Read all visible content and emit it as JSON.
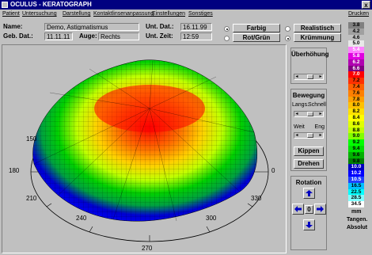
{
  "window": {
    "title": "OCULUS - KERATOGRAPH",
    "close": "x"
  },
  "menu": [
    "Patient",
    "Untersuchung",
    "Darstellung",
    "Kontaktlinsenanpassung",
    "Einstellungen",
    "Sonstiges",
    "Drucken"
  ],
  "patient": {
    "name_label": "Name:",
    "name_value": "Demo, Astigmatismus",
    "dob_label": "Geb. Dat.:",
    "dob_value": "11.11.11",
    "eye_label": "Auge:",
    "eye_value": "Rechts",
    "exam_date_label": "Unt. Dat.:",
    "exam_date_value": "16.11.99",
    "exam_time_label": "Unt. Zeit:",
    "exam_time_value": "12:59"
  },
  "display_mode": {
    "farbig": "Farbig",
    "rotgruen": "Rot/Grün",
    "realistisch": "Realistisch",
    "kruemmung": "Krümmung",
    "selected_color": "farbig",
    "selected_style": "kruemmung"
  },
  "controls": {
    "ueberhoehung_title": "Überhöhung",
    "bewegung_title": "Bewegung",
    "langs": "Langs.",
    "schnell": "Schnell",
    "weit": "Weit",
    "eng": "Eng",
    "kippen": "Kippen",
    "drehen": "Drehen",
    "rotation_title": "Rotation",
    "rotation_center": "0"
  },
  "axis_labels": {
    "a150": "150",
    "a180": "180",
    "a210": "210",
    "a240": "240",
    "a270": "270",
    "a300": "300",
    "a330": "330",
    "a0": "0"
  },
  "scale": {
    "values": [
      "3.8",
      "4.2",
      "4.6",
      "5.0",
      "5.4",
      "5.8",
      "6.2",
      "6.6",
      "7.0",
      "7.2",
      "7.4",
      "7.6",
      "7.8",
      "8.0",
      "8.2",
      "8.4",
      "8.6",
      "8.8",
      "9.0",
      "9.2",
      "9.4",
      "9.6",
      "9.8",
      "10.0",
      "10.2",
      "10.5",
      "16.5",
      "22.5",
      "28.5",
      "34.5"
    ],
    "colors": [
      "#808080",
      "#a0a0a0",
      "#c0c0c0",
      "#e8e8e8",
      "#ff80ff",
      "#e000e0",
      "#b000b0",
      "#800080",
      "#ff0000",
      "#ff3000",
      "#ff6000",
      "#ff8000",
      "#ffa000",
      "#ffc000",
      "#ffe000",
      "#ffff00",
      "#e0ff00",
      "#c0ff00",
      "#80ff00",
      "#00ff00",
      "#00e000",
      "#00b000",
      "#008000",
      "#0000c0",
      "#0000ff",
      "#2040ff",
      "#00c0ff",
      "#00ffff",
      "#80ffff",
      "#ffffff"
    ],
    "unit": "mm",
    "type1": "Tangen.",
    "type2": "Absolut"
  }
}
